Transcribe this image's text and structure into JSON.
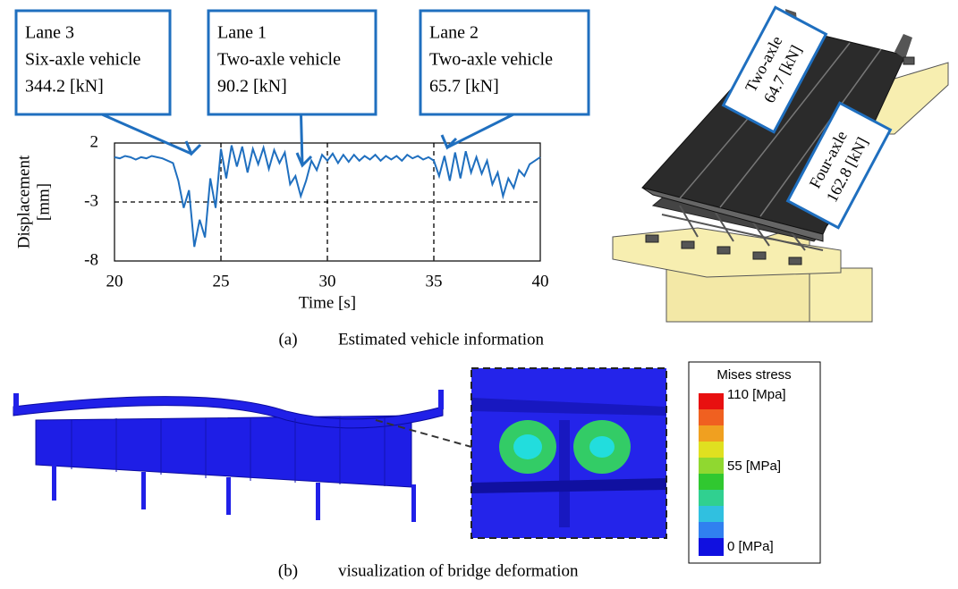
{
  "chart_data": {
    "type": "line",
    "x_label": "Time [s]",
    "y_label": [
      "Displacement",
      "[mm]"
    ],
    "x": [
      20,
      20.25,
      20.5,
      20.75,
      21,
      21.25,
      21.5,
      21.75,
      22,
      22.25,
      22.5,
      22.75,
      23,
      23.25,
      23.5,
      23.75,
      24,
      24.25,
      24.5,
      24.75,
      25,
      25.25,
      25.5,
      25.75,
      26,
      26.25,
      26.5,
      26.75,
      27,
      27.25,
      27.5,
      27.75,
      28,
      28.25,
      28.5,
      28.75,
      29,
      29.25,
      29.5,
      29.75,
      30,
      30.25,
      30.5,
      30.75,
      31,
      31.25,
      31.5,
      31.75,
      32,
      32.25,
      32.5,
      32.75,
      33,
      33.25,
      33.5,
      33.75,
      34,
      34.25,
      34.5,
      34.75,
      35,
      35.25,
      35.5,
      35.75,
      36,
      36.25,
      36.5,
      36.75,
      37,
      37.25,
      37.5,
      37.75,
      38,
      38.25,
      38.5,
      38.75,
      39,
      39.25,
      39.5,
      39.75,
      40
    ],
    "series": [
      {
        "color": "#1f6fbf",
        "values": [
          0.8,
          0.7,
          0.9,
          0.8,
          0.6,
          0.8,
          0.7,
          0.9,
          0.8,
          0.7,
          0.5,
          0.3,
          -1.2,
          -3.5,
          -2,
          -6.8,
          -4.5,
          -6,
          -1,
          -3.5,
          1.5,
          -1,
          1.8,
          0,
          1.7,
          -0.5,
          1.5,
          0.2,
          1.6,
          -0.2,
          1.4,
          0.3,
          1.2,
          -1.5,
          -0.8,
          -2.5,
          -1.2,
          0.5,
          -0.3,
          1,
          0.5,
          1.1,
          0.3,
          1,
          0.4,
          1,
          0.5,
          0.9,
          0.6,
          1,
          0.5,
          0.9,
          0.6,
          0.9,
          0.5,
          1,
          0.7,
          0.9,
          0.6,
          0.8,
          0.5,
          -0.8,
          0.9,
          -1.2,
          1.2,
          -1,
          1.3,
          -0.5,
          0.8,
          -0.6,
          0.5,
          -1.5,
          -0.5,
          -2.5,
          -1,
          -1.8,
          -0.3,
          -0.8,
          0.2,
          0.5,
          0.8
        ]
      }
    ],
    "xlim": [
      20,
      40
    ],
    "xticks": [
      20,
      25,
      30,
      35,
      40
    ],
    "ylim": [
      -8,
      2
    ],
    "yticks": [
      -8,
      -3,
      2
    ],
    "grid": true,
    "annotations": [
      {
        "lines": [
          "Lane 3",
          "Six-axle  vehicle",
          "344.2  [kN]"
        ]
      },
      {
        "lines": [
          "Lane 1",
          "Two-axle  vehicle",
          "90.2  [kN]"
        ]
      },
      {
        "lines": [
          "Lane 2",
          "Two-axle  vehicle",
          "65.7  [kN]"
        ]
      }
    ]
  },
  "bridge_labels": [
    {
      "lines": [
        "Two-axle",
        "64.7 [kN]"
      ]
    },
    {
      "lines": [
        "Four-axle",
        "162.8 [kN]"
      ]
    }
  ],
  "captions": {
    "a": {
      "label": "(a)",
      "text": "Estimated vehicle information"
    },
    "b": {
      "label": "(b)",
      "text": "visualization of bridge deformation"
    }
  },
  "stress_legend": {
    "title": "Mises stress",
    "labels": [
      "110 [Mpa]",
      "55 [MPa]",
      "0 [MPa]"
    ]
  }
}
